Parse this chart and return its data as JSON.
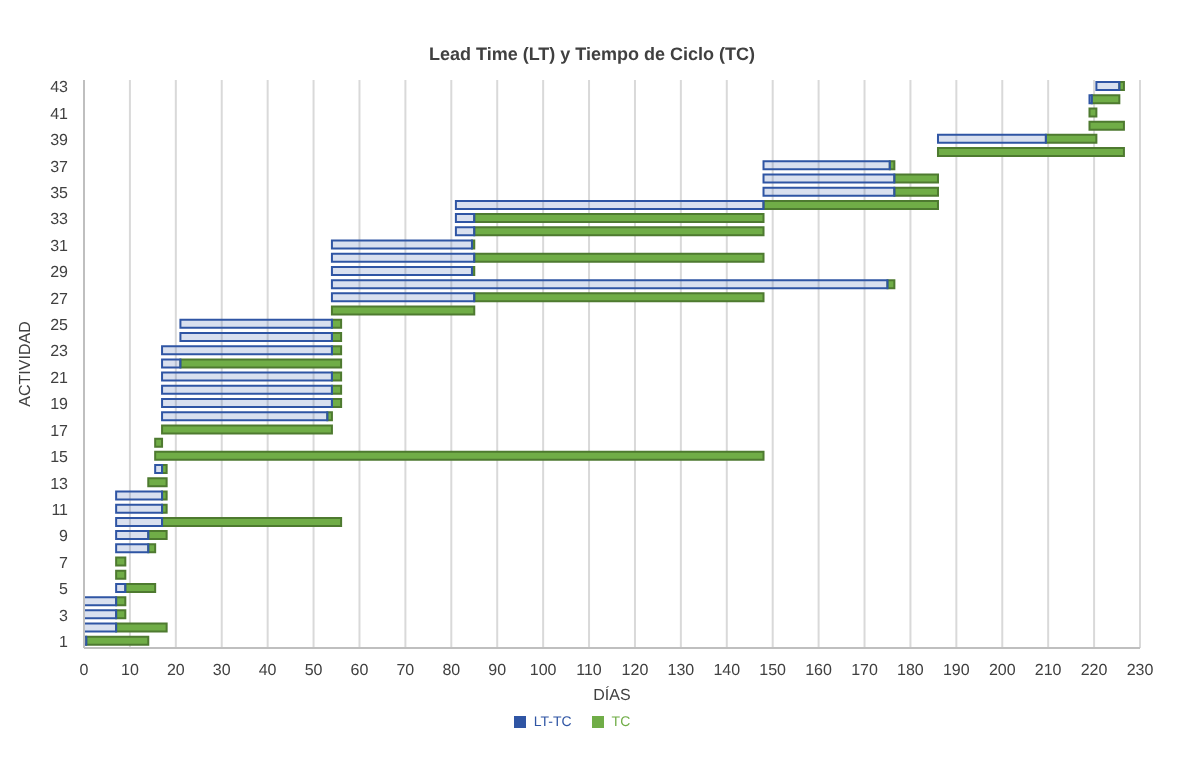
{
  "chart_data": {
    "type": "bar",
    "orientation": "horizontal",
    "title": "Lead Time (LT) y Tiempo de Ciclo (TC)",
    "xlabel": "DÍAS",
    "ylabel": "ACTIVIDAD",
    "categories": [
      "43",
      null,
      "41",
      null,
      "39",
      null,
      "37",
      null,
      "35",
      null,
      "33",
      null,
      "31",
      null,
      "29",
      null,
      "27",
      null,
      "25",
      null,
      "23",
      null,
      "21",
      null,
      "19",
      null,
      "17",
      null,
      "15",
      null,
      "13",
      null,
      "11",
      null,
      "9",
      null,
      "7",
      null,
      "5",
      null,
      "3",
      null,
      "1"
    ],
    "series": [
      {
        "name": "LT-TC",
        "color": "#2f55a4",
        "base": [
          220.5,
          219,
          null,
          null,
          186,
          null,
          148,
          148,
          148,
          81,
          81,
          81,
          54,
          54,
          54,
          54,
          54,
          null,
          21,
          21,
          17,
          17,
          17,
          17,
          17,
          17,
          null,
          null,
          null,
          15.5,
          null,
          7,
          7,
          7,
          7,
          7,
          null,
          null,
          7,
          0,
          0,
          0,
          0
        ],
        "values": [
          5,
          0.5,
          null,
          null,
          23.5,
          null,
          27.5,
          28.5,
          28.5,
          67,
          4,
          4,
          30.5,
          31,
          30.5,
          121,
          31,
          null,
          33,
          33,
          37,
          4,
          37,
          37,
          37,
          36,
          null,
          null,
          null,
          1.5,
          null,
          10,
          10,
          10,
          7,
          7,
          null,
          null,
          2,
          7,
          7,
          7,
          0.5
        ]
      },
      {
        "name": "TC",
        "color": "#70ad47",
        "base": [
          225.5,
          219.5,
          219,
          219,
          209.5,
          186,
          175.5,
          176.5,
          176.5,
          148,
          85,
          85,
          84.5,
          85,
          84.5,
          175,
          85,
          54,
          54,
          54,
          54,
          21,
          54,
          54,
          54,
          53,
          17,
          15.5,
          15.5,
          17,
          14,
          17,
          17,
          17,
          14,
          14,
          7,
          7,
          9,
          7,
          7,
          7,
          0.5
        ],
        "values": [
          1,
          6,
          1.5,
          7.5,
          11,
          40.5,
          1,
          9.5,
          9.5,
          38,
          63,
          63,
          0.5,
          63,
          0.5,
          1.5,
          63,
          31,
          2,
          2,
          2,
          35,
          2,
          2,
          2,
          1,
          37,
          1.5,
          132.5,
          1,
          4,
          1,
          1,
          39,
          4,
          1.5,
          2,
          2,
          6.5,
          2,
          2,
          11,
          13.5
        ]
      }
    ],
    "xlim": [
      0,
      230
    ],
    "xticks": [
      0,
      10,
      20,
      30,
      40,
      50,
      60,
      70,
      80,
      90,
      100,
      110,
      120,
      130,
      140,
      150,
      160,
      170,
      180,
      190,
      200,
      210,
      220,
      230
    ],
    "grid": "x",
    "legend": "bottom"
  }
}
